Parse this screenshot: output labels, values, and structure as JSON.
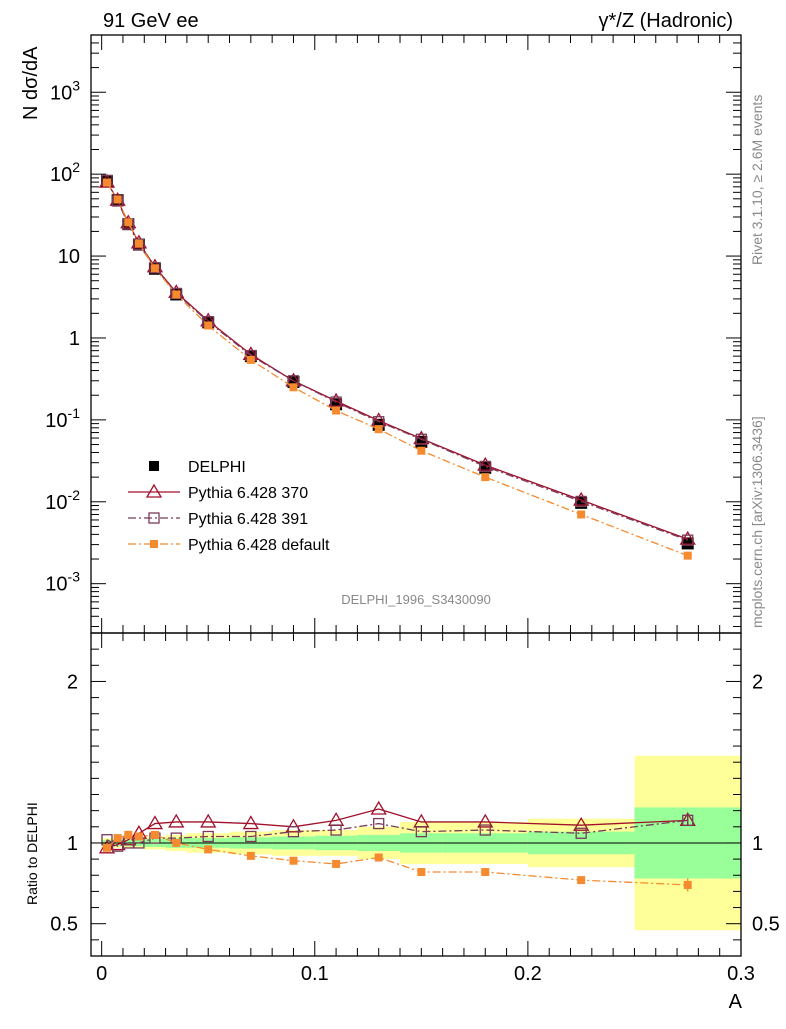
{
  "chart_data": {
    "type": "scatter",
    "header": {
      "left": "91 GeV ee",
      "right": "γ*/Z (Hadronic)"
    },
    "side_labels": {
      "top": "Rivet 3.1.10, ≥ 2.6M events",
      "bottom": "mcplots.cern.ch [arXiv:1306.3436]"
    },
    "analysis_label": "DELPHI_1996_S3430090",
    "x": [
      0.0025,
      0.0075,
      0.0125,
      0.0175,
      0.025,
      0.035,
      0.05,
      0.07,
      0.09,
      0.11,
      0.13,
      0.15,
      0.18,
      0.225,
      0.275
    ],
    "bin_edges": [
      0.0,
      0.005,
      0.01,
      0.015,
      0.02,
      0.03,
      0.04,
      0.06,
      0.08,
      0.1,
      0.12,
      0.14,
      0.16,
      0.2,
      0.25,
      0.3
    ],
    "xlim": [
      -0.005,
      0.3
    ],
    "xlabel": "A",
    "x_ticks": [
      0,
      0.1,
      0.2,
      0.3
    ],
    "x_tick_labels": [
      "0",
      "0.1",
      "0.2",
      "0.3"
    ],
    "top_panel": {
      "ylabel": "N dσ/dA",
      "yscale": "log",
      "ylim": [
        0.00025,
        5000
      ],
      "y_ticks": [
        0.001,
        0.01,
        0.1,
        1,
        10,
        100,
        1000
      ],
      "y_tick_labels": [
        {
          "base": "10",
          "exp": "-3"
        },
        {
          "base": "10",
          "exp": "-2"
        },
        {
          "base": "10",
          "exp": "-1"
        },
        {
          "base": "1",
          "exp": ""
        },
        {
          "base": "10",
          "exp": ""
        },
        {
          "base": "10",
          "exp": "2"
        },
        {
          "base": "10",
          "exp": "3"
        }
      ],
      "series": [
        {
          "name": "DELPHI",
          "color": "#000000",
          "marker": "filled-square",
          "line": "none",
          "values": [
            82,
            48,
            24.5,
            13.8,
            7.0,
            3.4,
            1.55,
            0.6,
            0.29,
            0.155,
            0.087,
            0.054,
            0.026,
            0.0097,
            0.0031
          ]
        },
        {
          "name": "Pythia 6.428 370",
          "color": "#a0102a",
          "marker": "open-triangle",
          "line": "solid",
          "values": [
            80,
            48,
            25.5,
            14.5,
            7.4,
            3.6,
            1.62,
            0.63,
            0.3,
            0.17,
            0.098,
            0.059,
            0.028,
            0.0105,
            0.0035
          ]
        },
        {
          "name": "Pythia 6.428 391",
          "color": "#7a3a5a",
          "marker": "open-square",
          "line": "dashdot",
          "values": [
            84,
            47,
            24.5,
            13.8,
            7.2,
            3.5,
            1.58,
            0.61,
            0.3,
            0.165,
            0.095,
            0.058,
            0.027,
            0.0101,
            0.0034
          ]
        },
        {
          "name": "Pythia 6.428 default",
          "color": "#f58a2e",
          "marker": "filled-small-square",
          "line": "dashdot",
          "values": [
            79,
            49,
            25.8,
            14.2,
            7.1,
            3.4,
            1.42,
            0.54,
            0.25,
            0.13,
            0.077,
            0.042,
            0.02,
            0.007,
            0.0022
          ]
        }
      ]
    },
    "ratio_panel": {
      "ylabel": "Ratio to DELPHI",
      "ylim": [
        0.3,
        2.3
      ],
      "y_ticks": [
        0.5,
        1,
        2
      ],
      "y_tick_labels": [
        "0.5",
        "1",
        "2"
      ],
      "band_stat": [
        0.02,
        0.02,
        0.02,
        0.02,
        0.025,
        0.03,
        0.03,
        0.035,
        0.04,
        0.045,
        0.05,
        0.06,
        0.06,
        0.07,
        0.22
      ],
      "band_total": [
        0.03,
        0.03,
        0.03,
        0.035,
        0.04,
        0.05,
        0.06,
        0.07,
        0.08,
        0.08,
        0.1,
        0.13,
        0.13,
        0.15,
        0.54
      ],
      "series": [
        {
          "name": "Pythia 6.428 370",
          "values": [
            0.97,
            0.99,
            1.02,
            1.06,
            1.12,
            1.13,
            1.13,
            1.12,
            1.1,
            1.14,
            1.21,
            1.13,
            1.13,
            1.11,
            1.14
          ],
          "errors": [
            0,
            0,
            0,
            0,
            0,
            0,
            0,
            0,
            0,
            0,
            0,
            0,
            0,
            0,
            0.03
          ]
        },
        {
          "name": "Pythia 6.428 391",
          "values": [
            1.02,
            0.98,
            1.0,
            1.0,
            1.03,
            1.03,
            1.04,
            1.04,
            1.07,
            1.08,
            1.12,
            1.07,
            1.08,
            1.06,
            1.14
          ],
          "errors": [
            0,
            0,
            0,
            0,
            0,
            0,
            0,
            0,
            0,
            0,
            0,
            0,
            0,
            0,
            0.03
          ]
        },
        {
          "name": "Pythia 6.428 default",
          "values": [
            0.97,
            1.03,
            1.05,
            1.04,
            1.05,
            1.0,
            0.96,
            0.92,
            0.89,
            0.87,
            0.91,
            0.82,
            0.82,
            0.77,
            0.74
          ],
          "errors": [
            0,
            0,
            0,
            0,
            0,
            0,
            0,
            0,
            0,
            0,
            0,
            0,
            0,
            0.02,
            0.04
          ]
        }
      ]
    }
  }
}
